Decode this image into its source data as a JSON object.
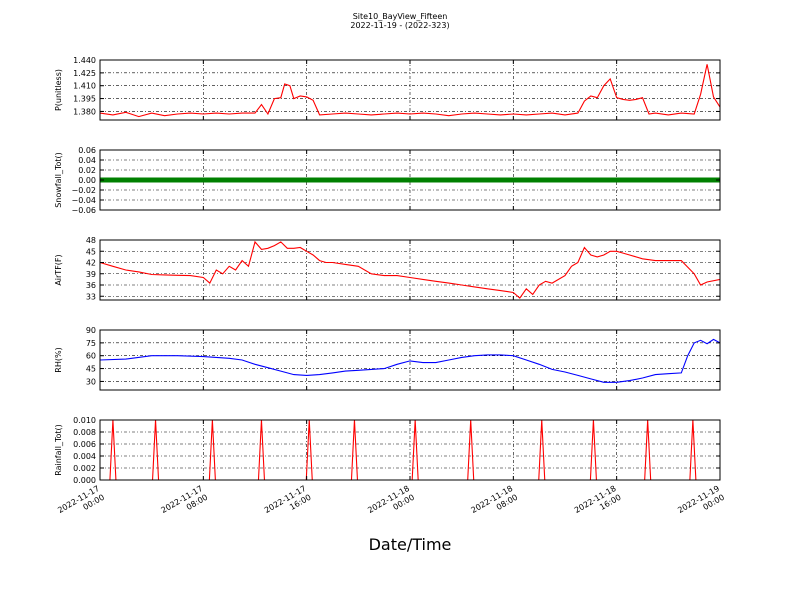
{
  "title_line1": "Site10_BayView_Fifteen",
  "title_line2": "2022-11-19 - (2022-323)",
  "xlabel": "Date/Time",
  "x_ticks": [
    {
      "line1": "2022-11-17",
      "line2": "00:00",
      "t": 0
    },
    {
      "line1": "2022-11-17",
      "line2": "08:00",
      "t": 8
    },
    {
      "line1": "2022-11-17",
      "line2": "16:00",
      "t": 16
    },
    {
      "line1": "2022-11-18",
      "line2": "00:00",
      "t": 24
    },
    {
      "line1": "2022-11-18",
      "line2": "08:00",
      "t": 32
    },
    {
      "line1": "2022-11-18",
      "line2": "16:00",
      "t": 40
    },
    {
      "line1": "2022-11-19",
      "line2": "00:00",
      "t": 48
    }
  ],
  "chart_data": [
    {
      "type": "line",
      "ylabel": "P(unitless)",
      "color": "#ff0000",
      "xlim": [
        "2022-11-17 00:00",
        "2022-11-19 00:00"
      ],
      "ylim": [
        1.37,
        1.44
      ],
      "yticks": [
        "1.380",
        "1.395",
        "1.410",
        "1.425",
        "1.440"
      ],
      "yticks_values": [
        1.38,
        1.395,
        1.41,
        1.425,
        1.44
      ],
      "grid": true,
      "x": [
        0,
        1,
        2,
        3,
        4,
        5,
        6,
        7,
        8,
        9,
        10,
        11,
        12,
        12.5,
        13,
        13.5,
        14,
        14.3,
        14.7,
        15,
        15.5,
        16,
        16.5,
        17,
        18,
        19,
        20,
        21,
        22,
        23,
        24,
        25,
        26,
        27,
        28,
        29,
        30,
        31,
        32,
        33,
        34,
        35,
        36,
        37,
        37.5,
        38,
        38.5,
        39,
        39.5,
        40,
        40.5,
        41,
        41.5,
        42,
        42.5,
        43,
        44,
        45,
        46,
        46.5,
        47,
        47.5,
        48
      ],
      "values": [
        1.378,
        1.376,
        1.379,
        1.374,
        1.378,
        1.375,
        1.377,
        1.378,
        1.377,
        1.378,
        1.377,
        1.378,
        1.378,
        1.388,
        1.377,
        1.395,
        1.396,
        1.412,
        1.41,
        1.395,
        1.398,
        1.397,
        1.393,
        1.376,
        1.377,
        1.378,
        1.377,
        1.376,
        1.377,
        1.378,
        1.377,
        1.378,
        1.377,
        1.375,
        1.377,
        1.378,
        1.377,
        1.376,
        1.377,
        1.376,
        1.377,
        1.378,
        1.376,
        1.378,
        1.392,
        1.398,
        1.396,
        1.41,
        1.418,
        1.396,
        1.394,
        1.393,
        1.394,
        1.396,
        1.377,
        1.378,
        1.376,
        1.378,
        1.377,
        1.4,
        1.435,
        1.397,
        1.385
      ]
    },
    {
      "type": "scatter",
      "ylabel": "Snowfall_Tot()",
      "color": "#008000",
      "xlim": [
        "2022-11-17 00:00",
        "2022-11-19 00:00"
      ],
      "ylim": [
        -0.06,
        0.06
      ],
      "yticks": [
        "−0.06",
        "−0.04",
        "−0.02",
        "0.00",
        "0.02",
        "0.04",
        "0.06"
      ],
      "yticks_values": [
        -0.06,
        -0.04,
        -0.02,
        0.0,
        0.02,
        0.04,
        0.06
      ],
      "grid": true,
      "constant_value": 0.0
    },
    {
      "type": "line",
      "ylabel": "AirTF(F)",
      "color": "#ff0000",
      "xlim": [
        "2022-11-17 00:00",
        "2022-11-19 00:00"
      ],
      "ylim": [
        32,
        48
      ],
      "yticks": [
        "33",
        "36",
        "39",
        "42",
        "45",
        "48"
      ],
      "yticks_values": [
        33,
        36,
        39,
        42,
        45,
        48
      ],
      "grid": true,
      "x": [
        0,
        1,
        2,
        3,
        4,
        5,
        6,
        7,
        8,
        8.5,
        9,
        9.5,
        10,
        10.5,
        11,
        11.5,
        12,
        12.5,
        13,
        13.5,
        14,
        14.5,
        15,
        15.5,
        16,
        16.5,
        17,
        17.5,
        18,
        19,
        20,
        21,
        22,
        23,
        24,
        25,
        26,
        27,
        28,
        29,
        30,
        31,
        32,
        32.5,
        33,
        33.5,
        34,
        34.5,
        35,
        35.5,
        36,
        36.5,
        37,
        37.5,
        38,
        38.5,
        39,
        39.5,
        40,
        40.5,
        41,
        42,
        43,
        44,
        45,
        46,
        46.5,
        47,
        48
      ],
      "values": [
        42,
        41,
        40,
        39.5,
        38.8,
        38.7,
        38.6,
        38.5,
        38,
        36.5,
        40,
        39,
        41,
        40,
        42.5,
        41,
        47.5,
        45.5,
        45.8,
        46.5,
        47.5,
        45.8,
        45.8,
        46,
        45,
        44,
        42.5,
        42,
        42,
        41.5,
        41,
        39,
        38.5,
        38.5,
        38,
        37.5,
        37,
        36.5,
        36,
        35.5,
        35,
        34.5,
        34,
        32.5,
        35,
        33.5,
        36,
        37,
        36.5,
        37.5,
        38.5,
        41,
        42,
        46,
        44,
        43.5,
        44,
        45,
        45,
        44.5,
        44,
        43,
        42.5,
        42.5,
        42.5,
        39,
        36,
        36.8,
        37.5
      ]
    },
    {
      "type": "line",
      "ylabel": "RH(%)",
      "color": "#0000ff",
      "xlim": [
        "2022-11-17 00:00",
        "2022-11-19 00:00"
      ],
      "ylim": [
        20,
        90
      ],
      "yticks": [
        "30",
        "45",
        "60",
        "75",
        "90"
      ],
      "yticks_values": [
        30,
        45,
        60,
        75,
        90
      ],
      "grid": true,
      "x": [
        0,
        2,
        4,
        6,
        8,
        10,
        11,
        12,
        13,
        14,
        15,
        16,
        17,
        18,
        19,
        20,
        21,
        22,
        23,
        24,
        25,
        26,
        27,
        28,
        29,
        30,
        31,
        32,
        33,
        34,
        35,
        36,
        37,
        38,
        39,
        40,
        41,
        42,
        43,
        44,
        45,
        45.5,
        46,
        46.5,
        47,
        47.5,
        48
      ],
      "values": [
        55,
        56,
        60,
        60,
        59,
        57,
        55,
        50,
        46,
        42,
        38,
        37,
        38,
        40,
        42,
        43,
        44,
        45,
        50,
        54,
        52,
        52,
        55,
        58,
        60,
        61,
        61,
        60,
        55,
        50,
        44,
        41,
        37,
        33,
        29,
        29,
        31,
        34,
        38,
        39,
        40,
        60,
        75,
        78,
        74,
        79,
        75
      ]
    },
    {
      "type": "line",
      "ylabel": "Rainfall_Tot()",
      "color": "#ff0000",
      "xlim": [
        "2022-11-17 00:00",
        "2022-11-19 00:00"
      ],
      "ylim": [
        0.0,
        0.01
      ],
      "yticks": [
        "0.000",
        "0.002",
        "0.004",
        "0.006",
        "0.008",
        "0.010"
      ],
      "yticks_values": [
        0.0,
        0.002,
        0.004,
        0.006,
        0.008,
        0.01
      ],
      "grid": true,
      "spikes_x": [
        1,
        4.3,
        8.7,
        12.5,
        16.2,
        19.7,
        24.4,
        28.7,
        34.2,
        38.2,
        42.4,
        45.9
      ],
      "spike_value": 0.01
    }
  ]
}
